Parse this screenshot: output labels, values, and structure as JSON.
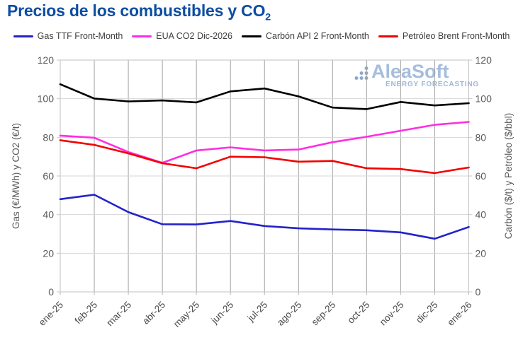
{
  "title": {
    "main": "Precios de los combustibles y CO",
    "sub": "2"
  },
  "legend": {
    "items": [
      {
        "label": "Gas TTF Front-Month",
        "color": "#2222cc"
      },
      {
        "label": "EUA CO2 Dic-2026",
        "color": "#ff2de2"
      },
      {
        "label": "Carbón API 2 Front-Month",
        "color": "#000000"
      },
      {
        "label": "Petróleo Brent Front-Month",
        "color": "#f40000"
      }
    ]
  },
  "watermark": {
    "name": "AleaSoft",
    "tagline": "ENERGY FORECASTING"
  },
  "axes": {
    "yticks": [
      0,
      20,
      40,
      60,
      80,
      100,
      120
    ],
    "ylabel_left": "Gas (€/MWh) y CO2 (€/t)",
    "ylabel_right": "Carbón ($/t) y Petróleo ($/bbl)"
  },
  "chart_data": {
    "type": "line",
    "title": "Precios de los combustibles y CO2",
    "categories": [
      "ene-25",
      "feb-25",
      "mar-25",
      "abr-25",
      "may-25",
      "jun-25",
      "jul-25",
      "ago-25",
      "sep-25",
      "oct-25",
      "nov-25",
      "dic-25",
      "ene-26"
    ],
    "series": [
      {
        "name": "Gas TTF Front-Month",
        "axis": "left",
        "unit": "€/MWh",
        "color": "#2222cc",
        "values": [
          48.0,
          50.3,
          41.3,
          35.0,
          34.9,
          36.7,
          34.1,
          32.9,
          32.3,
          31.9,
          30.8,
          27.5,
          33.6
        ]
      },
      {
        "name": "EUA CO2 Dic-2026",
        "axis": "left",
        "unit": "€/t",
        "color": "#ff2de2",
        "values": [
          80.9,
          79.8,
          72.4,
          66.8,
          73.2,
          74.8,
          73.2,
          73.7,
          77.5,
          80.3,
          83.4,
          86.5,
          88.0
        ]
      },
      {
        "name": "Carbón API 2 Front-Month",
        "axis": "right",
        "unit": "$/t",
        "color": "#000000",
        "values": [
          107.5,
          100.1,
          98.6,
          99.1,
          98.1,
          103.8,
          105.3,
          101.2,
          95.4,
          94.6,
          98.3,
          96.5,
          97.7
        ]
      },
      {
        "name": "Petróleo Brent Front-Month",
        "axis": "right",
        "unit": "$/bbl",
        "color": "#f40000",
        "values": [
          78.5,
          76.1,
          71.7,
          66.6,
          64.0,
          70.0,
          69.7,
          67.4,
          67.8,
          64.0,
          63.6,
          61.5,
          64.4
        ]
      }
    ],
    "xlabel": "",
    "ylabel": "Gas (€/MWh) y CO2 (€/t)",
    "ylabel_right": "Carbón ($/t) y Petróleo ($/bbl)",
    "ylim": [
      0,
      120
    ],
    "ytick_step": 20,
    "grid": true,
    "legend_position": "top"
  }
}
